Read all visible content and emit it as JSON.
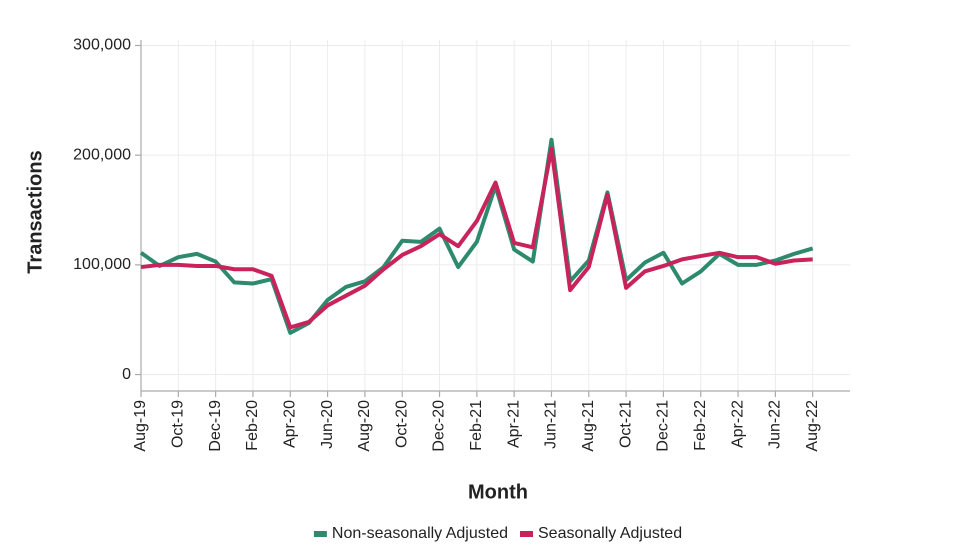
{
  "chart_data": {
    "type": "line",
    "x_label": "Month",
    "y_label": "Transactions",
    "categories": [
      "Aug-19",
      null,
      "Oct-19",
      null,
      "Dec-19",
      null,
      "Feb-20",
      null,
      "Apr-20",
      null,
      "Jun-20",
      null,
      "Aug-20",
      null,
      "Oct-20",
      null,
      "Dec-20",
      null,
      "Feb-21",
      null,
      "Apr-21",
      null,
      "Jun-21",
      null,
      "Aug-21",
      null,
      "Oct-21",
      null,
      "Dec-21",
      null,
      "Feb-22",
      null,
      "Apr-22",
      null,
      "Jun-22",
      null,
      "Aug-22"
    ],
    "series": [
      {
        "name": "Non-seasonally Adjusted",
        "color": "#2e8a6c",
        "values": [
          111000,
          99000,
          107000,
          110000,
          103000,
          84000,
          83000,
          87000,
          38000,
          47000,
          68000,
          80000,
          85000,
          98000,
          122000,
          121000,
          133000,
          98000,
          121000,
          172000,
          114000,
          103000,
          214000,
          85000,
          104000,
          166000,
          86000,
          102000,
          111000,
          83000,
          94000,
          110000,
          100000,
          100000,
          104000,
          110000,
          115000
        ]
      },
      {
        "name": "Seasonally Adjusted",
        "color": "#c8235a",
        "values": [
          98000,
          100000,
          100000,
          99000,
          99000,
          96000,
          96000,
          90000,
          43000,
          48000,
          63000,
          72000,
          81000,
          96000,
          109000,
          117000,
          128000,
          117000,
          140000,
          175000,
          120000,
          116000,
          206000,
          77000,
          98000,
          164000,
          79000,
          94000,
          99000,
          105000,
          108000,
          111000,
          107000,
          107000,
          101000,
          104000,
          105000
        ]
      }
    ],
    "ylim": [
      -15000,
      305000
    ],
    "yticks": [
      0,
      {
        "value": 100000,
        "label": "100,000"
      },
      {
        "value": 200000,
        "label": "200,000"
      },
      {
        "value": 300000,
        "label": "300,000"
      }
    ],
    "grid": true,
    "legend": "bottom"
  }
}
